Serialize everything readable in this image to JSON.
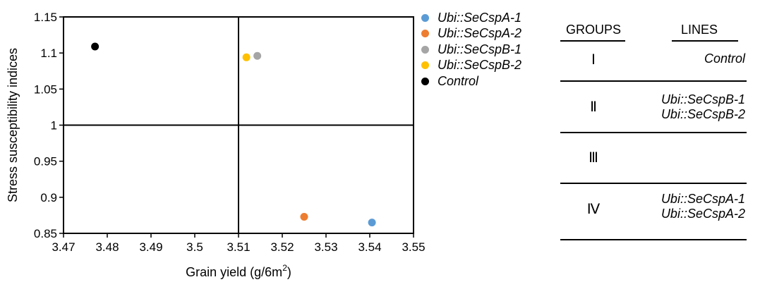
{
  "chart_data": {
    "type": "scatter",
    "xlabel": "Grain yield (g/6m",
    "xlabel_sup": "2",
    "xlabel_close": ")",
    "ylabel": "Stress susceptibility indices",
    "xlim": [
      3.47,
      3.55
    ],
    "ylim": [
      0.85,
      1.15
    ],
    "x_ticks": [
      3.47,
      3.48,
      3.49,
      3.5,
      3.51,
      3.52,
      3.53,
      3.54,
      3.55
    ],
    "x_tick_labels": [
      "3.47",
      "3.48",
      "3.49",
      "3.5",
      "3.51",
      "3.52",
      "3.53",
      "3.54",
      "3.55"
    ],
    "y_ticks": [
      0.85,
      0.9,
      0.95,
      1,
      1.05,
      1.1,
      1.15
    ],
    "y_tick_labels": [
      "0.85",
      "0.9",
      "0.95",
      "1",
      "1.05",
      "1.1",
      "1.15"
    ],
    "reference_lines": {
      "x": 3.51,
      "y": 1.0
    },
    "grid": false,
    "legend_position": "right",
    "series": [
      {
        "name": "Ubi::SeCspA-1",
        "color": "#5b9bd5",
        "x": 3.5405,
        "y": 0.865
      },
      {
        "name": "Ubi::SeCspA-2",
        "color": "#ed7d31",
        "x": 3.525,
        "y": 0.873
      },
      {
        "name": "Ubi::SeCspB-1",
        "color": "#a5a5a5",
        "x": 3.5143,
        "y": 1.096
      },
      {
        "name": "Ubi::SeCspB-2",
        "color": "#ffc000",
        "x": 3.5118,
        "y": 1.094
      },
      {
        "name": "Control",
        "color": "#000000",
        "x": 3.4772,
        "y": 1.109
      }
    ]
  },
  "groups_table": {
    "headers": {
      "groups": "GROUPS",
      "lines": "LINES"
    },
    "rows": [
      {
        "group": "Ⅰ",
        "lines": [
          "Control"
        ]
      },
      {
        "group": "Ⅱ",
        "lines": [
          "Ubi::SeCspB-1",
          "Ubi::SeCspB-2"
        ]
      },
      {
        "group": "Ⅲ",
        "lines": []
      },
      {
        "group": "Ⅳ",
        "lines": [
          "Ubi::SeCspA-1",
          "Ubi::SeCspA-2"
        ]
      }
    ]
  }
}
